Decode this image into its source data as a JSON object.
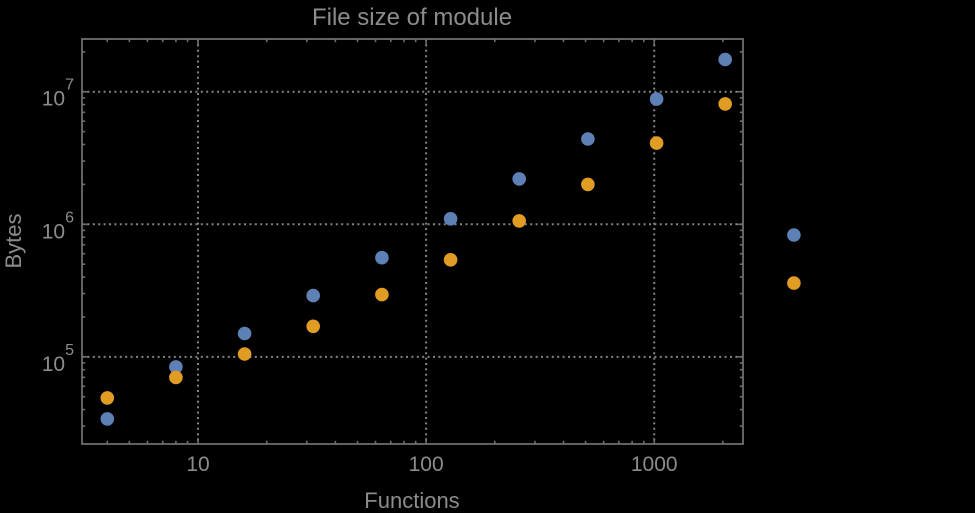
{
  "colors": {
    "background": "#000000",
    "frame": "#6e6e6e",
    "gridlines": "#848484",
    "text": "#8c8c8c",
    "series_blue": "#5e81b5",
    "series_orange": "#e19c24"
  },
  "chart_data": {
    "type": "scatter",
    "title": "File size of module",
    "xlabel": "Functions",
    "ylabel": "Bytes",
    "x_scale": "log",
    "y_scale": "log",
    "xlim": [
      3.1,
      2450
    ],
    "ylim": [
      22000,
      25000000
    ],
    "grid": "dotted gray lines at major decades only",
    "legend": "none",
    "x_ticks": [
      {
        "value": 10,
        "label": "10"
      },
      {
        "value": 100,
        "label": "100"
      },
      {
        "value": 1000,
        "label": "1000"
      }
    ],
    "y_ticks": [
      {
        "value": 100000,
        "base": "10",
        "exponent": "5"
      },
      {
        "value": 1000000,
        "base": "10",
        "exponent": "6"
      },
      {
        "value": 10000000,
        "base": "10",
        "exponent": "7"
      }
    ],
    "x": [
      4,
      8,
      16,
      32,
      64,
      128,
      256,
      512,
      1024,
      2048,
      4096
    ],
    "series": [
      {
        "name": "blue",
        "color": "#5e81b5",
        "values": [
          34000,
          84000,
          150000,
          290000,
          560000,
          1100000,
          2200000,
          4400000,
          8800000,
          17500000,
          830000
        ]
      },
      {
        "name": "orange",
        "color": "#e19c24",
        "values": [
          49000,
          70000,
          105000,
          170000,
          295000,
          540000,
          1060000,
          2000000,
          4100000,
          8100000,
          360000
        ]
      }
    ]
  }
}
